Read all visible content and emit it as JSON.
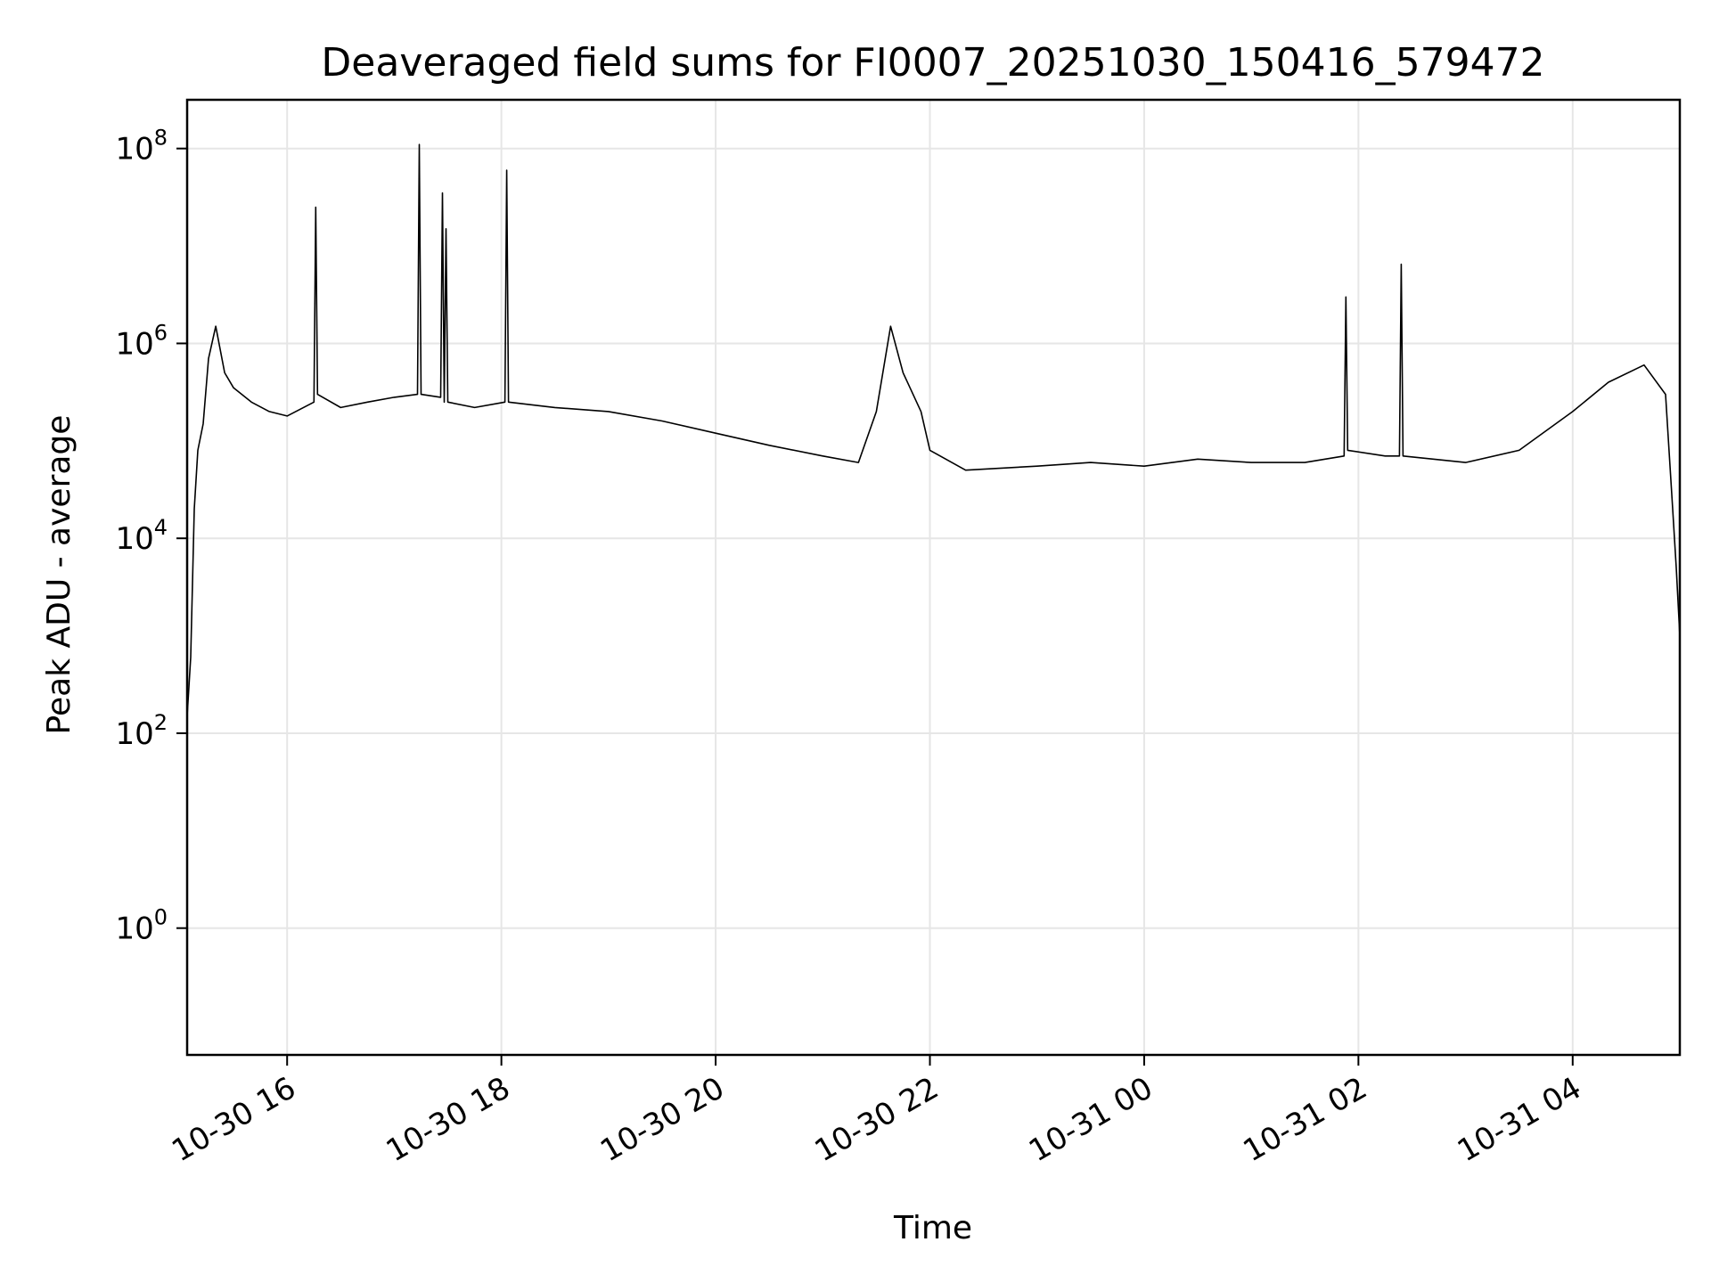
{
  "chart_data": {
    "type": "line",
    "title": "Deaveraged field sums for FI0007_20251030_150416_579472",
    "xlabel": "Time",
    "ylabel": "Peak ADU - average",
    "x_range": [
      "2025-10-30 15:04",
      "2025-10-31 05:00"
    ],
    "x_ticks": [
      {
        "value": "2025-10-30 16:00",
        "label": "10-30 16"
      },
      {
        "value": "2025-10-30 18:00",
        "label": "10-30 18"
      },
      {
        "value": "2025-10-30 20:00",
        "label": "10-30 20"
      },
      {
        "value": "2025-10-30 22:00",
        "label": "10-30 22"
      },
      {
        "value": "2025-10-31 00:00",
        "label": "10-31 00"
      },
      {
        "value": "2025-10-31 02:00",
        "label": "10-31 02"
      },
      {
        "value": "2025-10-31 04:00",
        "label": "10-31 04"
      }
    ],
    "y_scale": "log",
    "y_range": [
      0.05,
      316227766
    ],
    "y_ticks": [
      {
        "value": 1,
        "base": "10",
        "exp": "0"
      },
      {
        "value": 100,
        "base": "10",
        "exp": "2"
      },
      {
        "value": 10000,
        "base": "10",
        "exp": "4"
      },
      {
        "value": 1000000,
        "base": "10",
        "exp": "6"
      },
      {
        "value": 100000000,
        "base": "10",
        "exp": "8"
      }
    ],
    "grid": true,
    "line_color": "#000000",
    "series": [
      {
        "points": [
          [
            "2025-10-30 15:04",
            150
          ],
          [
            "2025-10-30 15:06",
            600
          ],
          [
            "2025-10-30 15:08",
            20000
          ],
          [
            "2025-10-30 15:10",
            80000
          ],
          [
            "2025-10-30 15:13",
            150000
          ],
          [
            "2025-10-30 15:16",
            700000
          ],
          [
            "2025-10-30 15:20",
            1500000
          ],
          [
            "2025-10-30 15:25",
            500000
          ],
          [
            "2025-10-30 15:30",
            350000
          ],
          [
            "2025-10-30 15:40",
            250000
          ],
          [
            "2025-10-30 15:50",
            200000
          ],
          [
            "2025-10-30 16:00",
            180000
          ],
          [
            "2025-10-30 16:15",
            250000
          ],
          [
            "2025-10-30 16:16",
            25000000
          ],
          [
            "2025-10-30 16:17",
            300000
          ],
          [
            "2025-10-30 16:30",
            220000
          ],
          [
            "2025-10-30 16:45",
            250000
          ],
          [
            "2025-10-30 17:00",
            280000
          ],
          [
            "2025-10-30 17:13",
            300000
          ],
          [
            "2025-10-30 17:14",
            110000000
          ],
          [
            "2025-10-30 17:15",
            300000
          ],
          [
            "2025-10-30 17:26",
            280000
          ],
          [
            "2025-10-30 17:27",
            35000000
          ],
          [
            "2025-10-30 17:28",
            250000
          ],
          [
            "2025-10-30 17:29",
            15000000
          ],
          [
            "2025-10-30 17:30",
            250000
          ],
          [
            "2025-10-30 17:45",
            220000
          ],
          [
            "2025-10-30 18:02",
            250000
          ],
          [
            "2025-10-30 18:03",
            60000000
          ],
          [
            "2025-10-30 18:04",
            250000
          ],
          [
            "2025-10-30 18:30",
            220000
          ],
          [
            "2025-10-30 19:00",
            200000
          ],
          [
            "2025-10-30 19:30",
            160000
          ],
          [
            "2025-10-30 20:00",
            120000
          ],
          [
            "2025-10-30 20:30",
            90000
          ],
          [
            "2025-10-30 21:00",
            70000
          ],
          [
            "2025-10-30 21:20",
            60000
          ],
          [
            "2025-10-30 21:30",
            200000
          ],
          [
            "2025-10-30 21:38",
            1500000
          ],
          [
            "2025-10-30 21:45",
            500000
          ],
          [
            "2025-10-30 21:55",
            200000
          ],
          [
            "2025-10-30 22:00",
            80000
          ],
          [
            "2025-10-30 22:20",
            50000
          ],
          [
            "2025-10-30 23:00",
            55000
          ],
          [
            "2025-10-30 23:30",
            60000
          ],
          [
            "2025-10-31 00:00",
            55000
          ],
          [
            "2025-10-31 00:30",
            65000
          ],
          [
            "2025-10-31 01:00",
            60000
          ],
          [
            "2025-10-31 01:30",
            60000
          ],
          [
            "2025-10-31 01:52",
            70000
          ],
          [
            "2025-10-31 01:53",
            3000000
          ],
          [
            "2025-10-31 01:54",
            80000
          ],
          [
            "2025-10-31 02:15",
            70000
          ],
          [
            "2025-10-31 02:23",
            70000
          ],
          [
            "2025-10-31 02:24",
            6500000
          ],
          [
            "2025-10-31 02:25",
            70000
          ],
          [
            "2025-10-31 03:00",
            60000
          ],
          [
            "2025-10-31 03:30",
            80000
          ],
          [
            "2025-10-31 04:00",
            200000
          ],
          [
            "2025-10-31 04:20",
            400000
          ],
          [
            "2025-10-31 04:40",
            600000
          ],
          [
            "2025-10-31 04:52",
            300000
          ],
          [
            "2025-10-31 04:56",
            20000
          ],
          [
            "2025-10-31 04:58",
            5000
          ],
          [
            "2025-10-31 05:00",
            1000
          ]
        ]
      }
    ]
  }
}
